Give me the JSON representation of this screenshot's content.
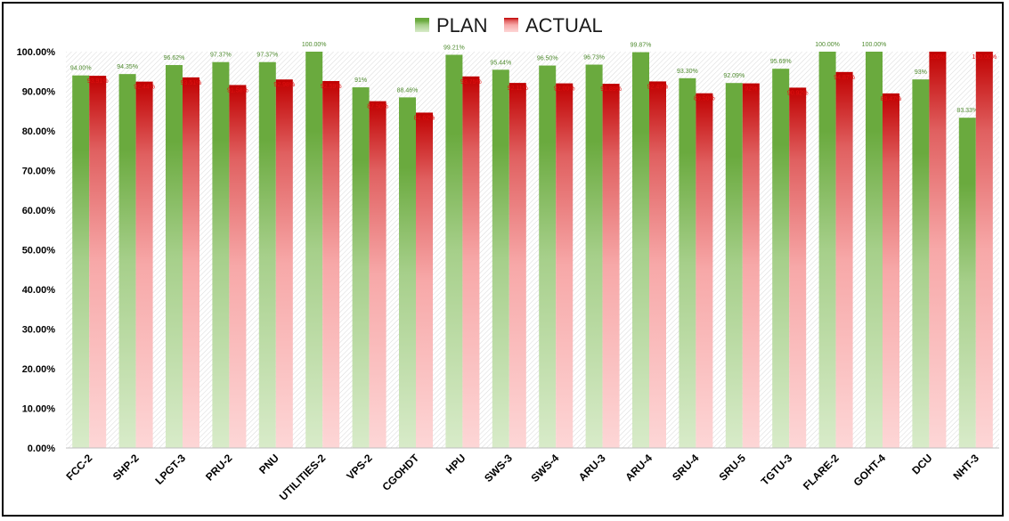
{
  "chart_data": {
    "type": "bar",
    "title": "",
    "xlabel": "",
    "ylabel": "",
    "ylim": [
      0,
      100
    ],
    "yticks": [
      0,
      10,
      20,
      30,
      40,
      50,
      60,
      70,
      80,
      90,
      100
    ],
    "ytick_labels": [
      "0.00%",
      "10.00%",
      "20.00%",
      "30.00%",
      "40.00%",
      "50.00%",
      "60.00%",
      "70.00%",
      "80.00%",
      "90.00%",
      "100.00%"
    ],
    "legend_position": "top-center",
    "grid": false,
    "categories": [
      "FCC-2",
      "SHP-2",
      "LPGT-3",
      "PRU-2",
      "PNU",
      "UTILITIES-2",
      "VPS-2",
      "CGOHDT",
      "HPU",
      "SWS-3",
      "SWS-4",
      "ARU-3",
      "ARU-4",
      "SRU-4",
      "SRU-5",
      "TGTU-3",
      "FLARE-2",
      "GOHT-4",
      "DCU",
      "NHT-3"
    ],
    "series": [
      {
        "name": "PLAN",
        "color": "#6aaa3e",
        "label_color": "#4e8a2e",
        "values": [
          94.0,
          94.35,
          96.62,
          97.37,
          97.37,
          100.0,
          91,
          88.46,
          99.21,
          95.44,
          96.5,
          96.73,
          99.87,
          93.3,
          92.09,
          95.69,
          100.0,
          100.0,
          93,
          83.33
        ],
        "labels": [
          "94.00%",
          "94.35%",
          "96.62%",
          "97.37%",
          "97.37%",
          "100.00%",
          "91%",
          "88.46%",
          "99.21%",
          "95.44%",
          "96.50%",
          "96.73%",
          "99.87%",
          "93.30%",
          "92.09%",
          "95.69%",
          "100.00%",
          "100.00%",
          "93%",
          "83.33%"
        ]
      },
      {
        "name": "ACTUAL",
        "color": "#c00000",
        "label_color": "#e01010",
        "values": [
          93.91,
          92.44,
          93.51,
          91.58,
          92.98,
          92.59,
          87.5,
          84.62,
          93.75,
          92.11,
          92.0,
          91.89,
          92.49,
          89.5,
          92,
          90.92,
          94.87,
          89.47,
          100,
          100.0
        ],
        "labels": [
          "93.91%",
          "92.44%",
          "93.51%",
          "91.58%",
          "92.98%",
          "92.59%",
          "87.50%",
          "84.62%",
          "93.75%",
          "92.11%",
          "92.00%",
          "91.89%",
          "92.49%",
          "89.50%",
          "92%",
          "90.92%",
          "94.87%",
          "89.47%",
          "100%",
          "100.00%"
        ]
      }
    ]
  }
}
